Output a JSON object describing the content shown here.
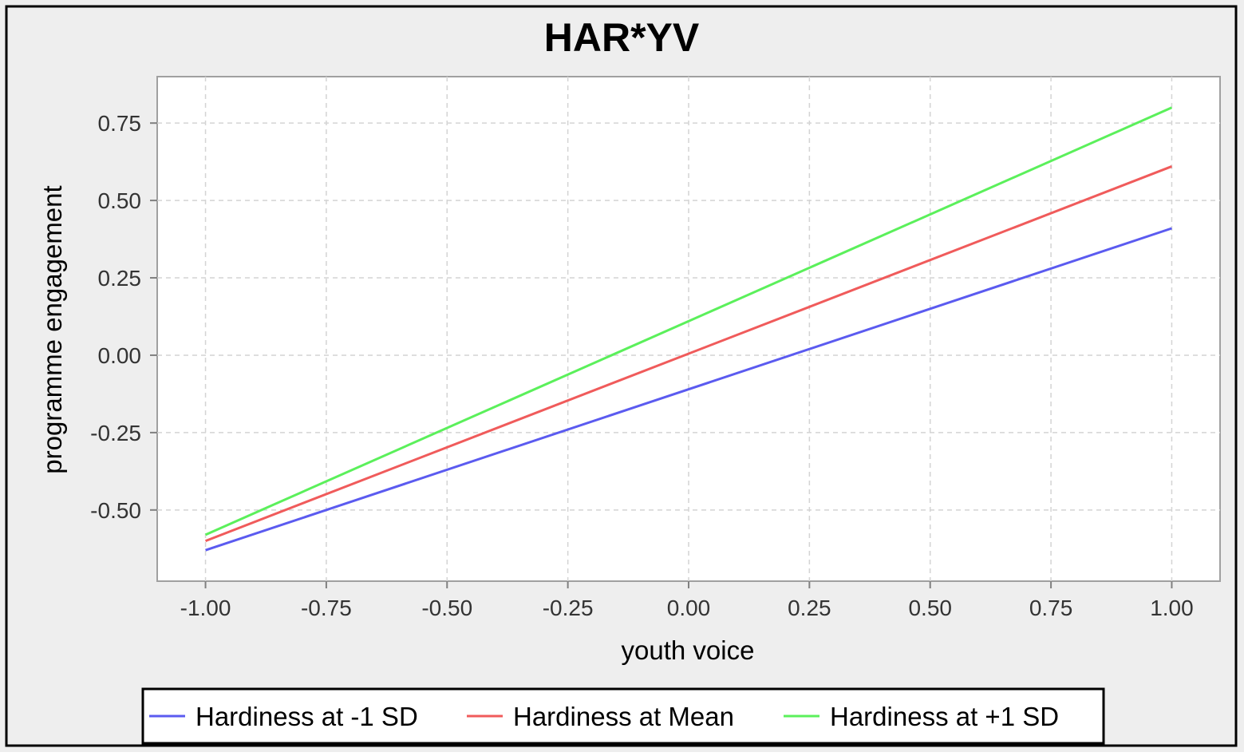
{
  "chart_data": {
    "type": "line",
    "title": "HAR*YV",
    "xlabel": "youth voice",
    "ylabel": "programme engagement",
    "xlim": [
      -1.1,
      1.1
    ],
    "ylim": [
      -0.73,
      0.9
    ],
    "x_ticks": [
      "-1.00",
      "-0.75",
      "-0.50",
      "-0.25",
      "0.00",
      "0.25",
      "0.50",
      "0.75",
      "1.00"
    ],
    "y_ticks": [
      "-0.50",
      "-0.25",
      "0.00",
      "0.25",
      "0.50",
      "0.75"
    ],
    "grid": true,
    "legend_position": "bottom",
    "series": [
      {
        "name": "Hardiness at -1 SD",
        "color": "#5b5bf0",
        "x": [
          -1.0,
          1.0
        ],
        "y": [
          -0.63,
          0.41
        ]
      },
      {
        "name": "Hardiness at Mean",
        "color": "#f05b5b",
        "x": [
          -1.0,
          1.0
        ],
        "y": [
          -0.6,
          0.61
        ]
      },
      {
        "name": "Hardiness at +1 SD",
        "color": "#5bf05b",
        "x": [
          -1.0,
          1.0
        ],
        "y": [
          -0.58,
          0.8
        ]
      }
    ]
  }
}
